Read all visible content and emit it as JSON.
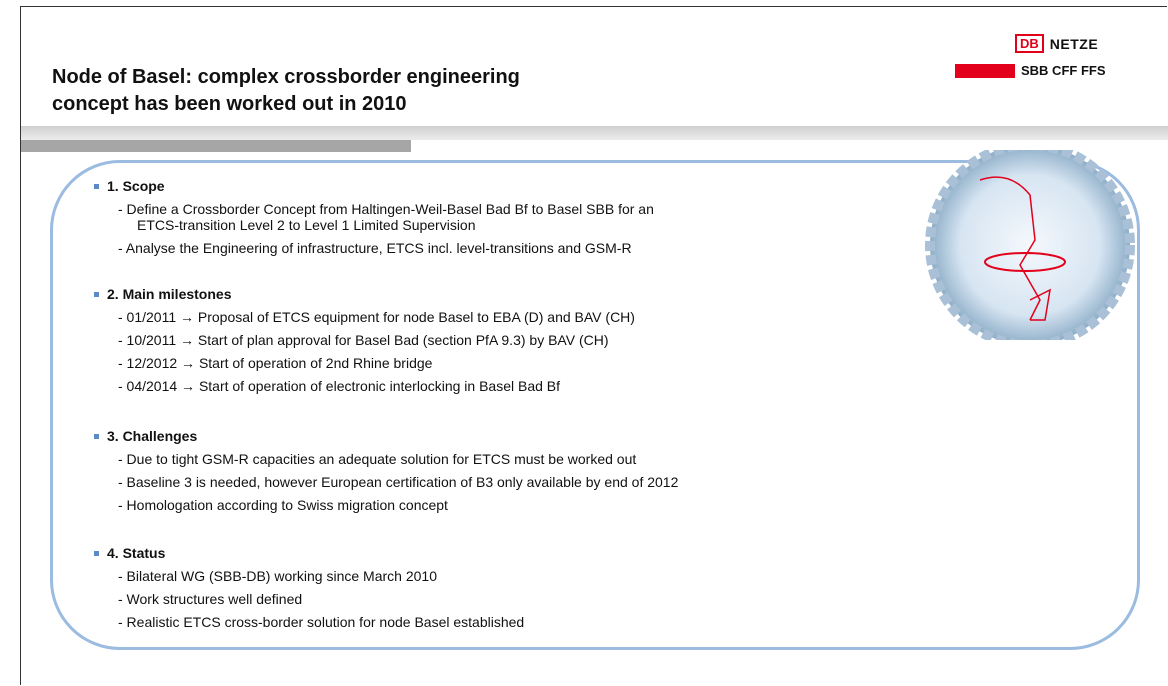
{
  "header": {
    "title_lines": [
      "Node of Basel: complex crossborder engineering",
      "concept has been worked out in 2010"
    ],
    "logo_db": "DB",
    "logo_netze": "NETZE",
    "logo_sbb": "SBB CFF FFS"
  },
  "sections": [
    {
      "heading": "1. Scope",
      "items": [
        [
          "- Define a Crossborder Concept from Haltingen-Weil-Basel Bad Bf to Basel SBB for an",
          "ETCS-transition Level 2 to Level 1 Limited Supervision"
        ],
        [
          "- Analyse the Engineering of infrastructure, ETCS incl. level-transitions and GSM-R"
        ]
      ]
    },
    {
      "heading": "2. Main milestones",
      "items": [
        [
          "- 01/2011 → Proposal of ETCS equipment for node Basel to EBA (D) and BAV (CH)"
        ],
        [
          "- 10/2011 → Start of plan approval for Basel Bad (section PfA 9.3) by BAV (CH)"
        ],
        [
          "- 12/2012 → Start of operation of 2nd Rhine bridge"
        ],
        [
          "- 04/2014 → Start of operation of electronic interlocking in Basel Bad Bf"
        ]
      ]
    },
    {
      "heading": "3. Challenges",
      "items": [
        [
          "- Due to tight GSM-R capacities an adequate solution for ETCS must be worked out"
        ],
        [
          "- Baseline 3 is needed, however European certification of B3 only available by end of 2012"
        ],
        [
          "- Homologation according to Swiss migration concept"
        ]
      ]
    },
    {
      "heading": "4. Status",
      "items": [
        [
          "- Bilateral WG (SBB-DB) working since March 2010"
        ],
        [
          "- Work structures well defined"
        ],
        [
          "- Realistic ETCS cross-border solution for node Basel established"
        ]
      ]
    }
  ]
}
